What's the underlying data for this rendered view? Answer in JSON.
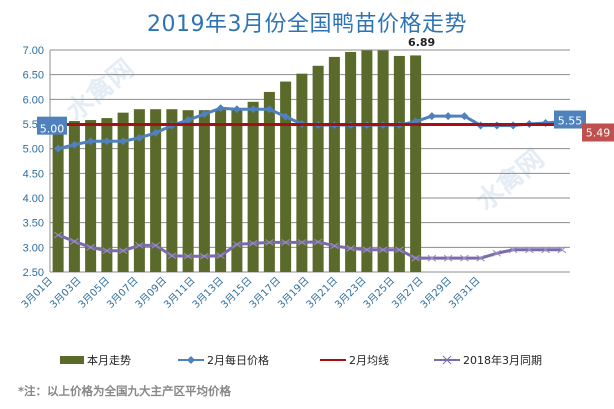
{
  "chart_data": {
    "type": "bar",
    "title": "2019年3月份全国鸭苗价格走势",
    "xlabel": "",
    "ylabel": "",
    "ylim": [
      2.5,
      7.0
    ],
    "yticks": [
      "7.00",
      "6.50",
      "6.00",
      "5.50",
      "5.00",
      "4.50",
      "4.00",
      "3.50",
      "3.00",
      "2.50"
    ],
    "categories_count": 32,
    "x_tick_labels": [
      "3月01日",
      "3月03日",
      "3月05日",
      "3月07日",
      "3月09日",
      "3月11日",
      "3月13日",
      "3月15日",
      "3月17日",
      "3月19日",
      "3月21日",
      "3月23日",
      "3月25日",
      "3月27日",
      "3月29日",
      "3月31日"
    ],
    "grid": true,
    "legend_position": "bottom",
    "series": [
      {
        "name": "本月走势",
        "type": "bar",
        "color": "#5a6a2a",
        "values": [
          5.5,
          5.56,
          5.58,
          5.62,
          5.73,
          5.8,
          5.8,
          5.8,
          5.78,
          5.78,
          5.8,
          5.8,
          5.95,
          6.15,
          6.36,
          6.52,
          6.68,
          6.86,
          6.96,
          6.99,
          6.99,
          6.88,
          6.89
        ]
      },
      {
        "name": "2月每日价格",
        "type": "line",
        "color": "#4f81bd",
        "values": [
          5.0,
          5.08,
          5.15,
          5.15,
          5.15,
          5.22,
          5.32,
          5.47,
          5.58,
          5.7,
          5.82,
          5.8,
          5.8,
          5.8,
          5.65,
          5.5,
          5.48,
          5.48,
          5.48,
          5.48,
          5.48,
          5.48,
          5.55,
          5.66,
          5.66,
          5.66,
          5.47,
          5.47,
          5.47,
          5.5,
          5.52,
          5.55
        ]
      },
      {
        "name": "2月均线",
        "type": "line",
        "color": "#a50f15",
        "value": 5.49
      },
      {
        "name": "2018年3月同期",
        "type": "line",
        "color": "#7b6ba8",
        "values": [
          3.25,
          3.12,
          3.0,
          2.93,
          2.93,
          3.04,
          3.04,
          2.83,
          2.82,
          2.82,
          2.83,
          3.06,
          3.08,
          3.1,
          3.1,
          3.1,
          3.11,
          3.03,
          2.98,
          2.95,
          2.95,
          2.95,
          2.78,
          2.78,
          2.78,
          2.78,
          2.78,
          2.88,
          2.95,
          2.95,
          2.95,
          2.95
        ]
      }
    ],
    "annotations": {
      "bar_last": "6.89",
      "line_first": "5.00",
      "line_last": "5.55",
      "avg": "5.49"
    }
  },
  "note": "*注：以上价格为全国九大主产区平均价格",
  "watermark": "水禽网"
}
